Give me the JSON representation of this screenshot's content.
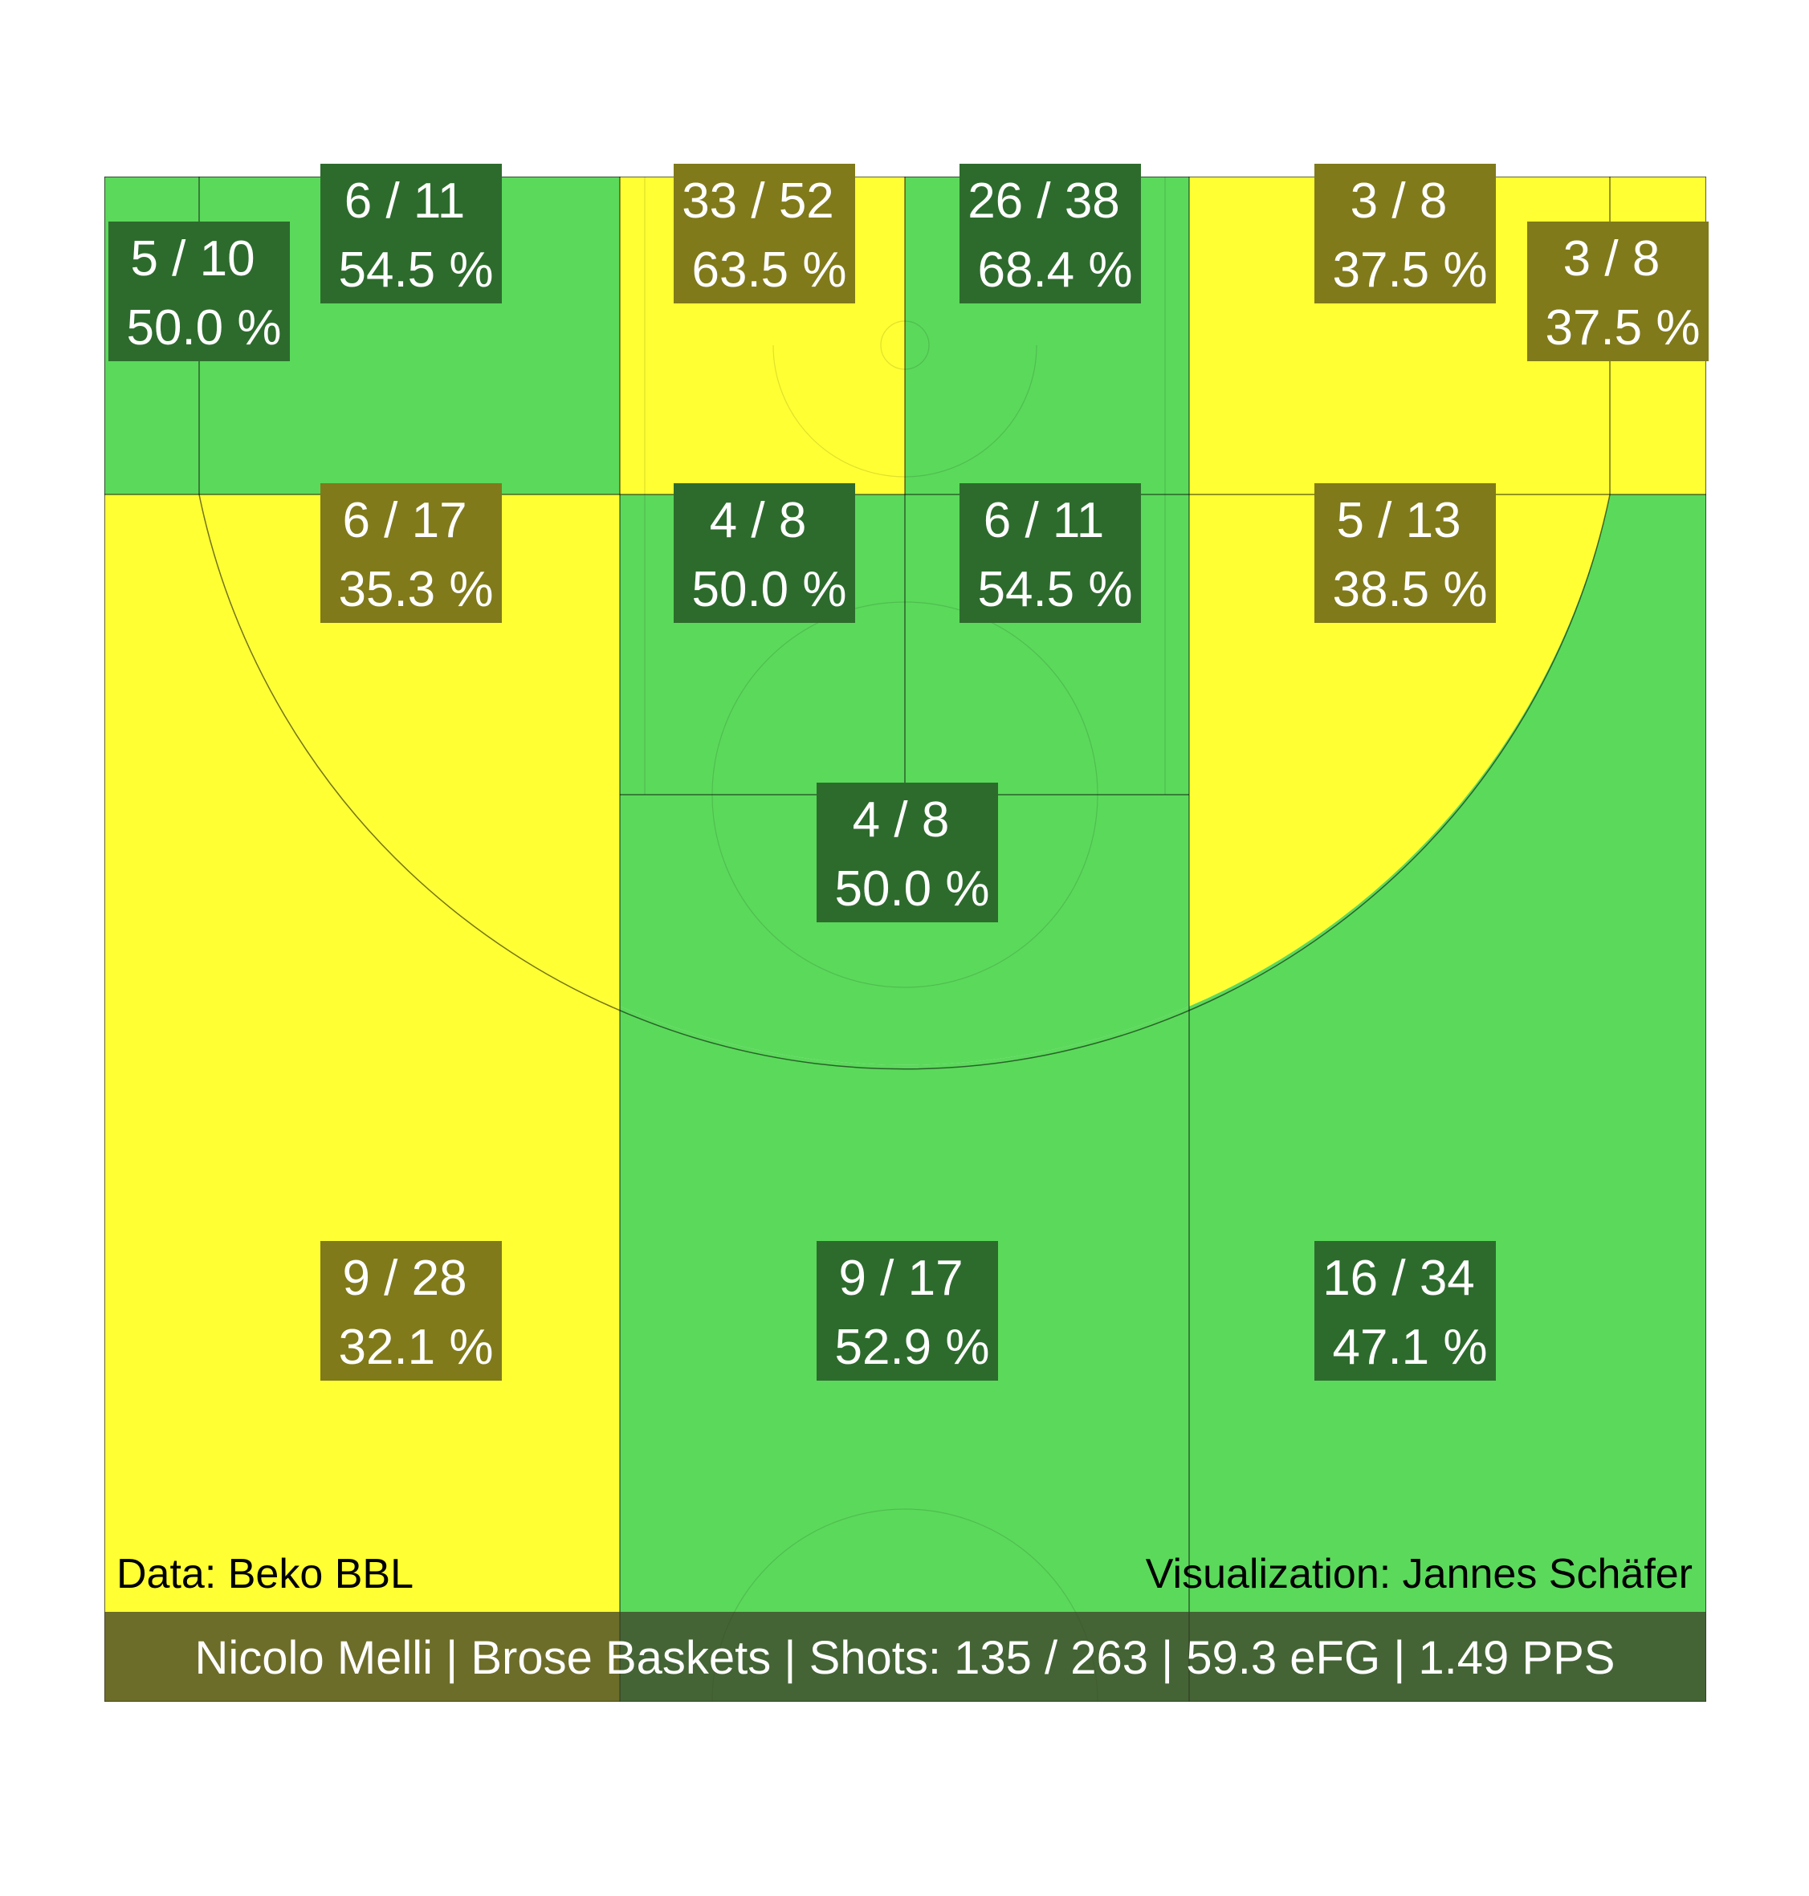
{
  "chart_data": {
    "type": "heatmap",
    "colors": {
      "above_average": "#5bd95b",
      "below_average": "#ffff33",
      "label_good": "#2d6b2d",
      "label_bad": "#807a1a",
      "court_line": "#000000",
      "banner": "#4a4a3a"
    },
    "zones": [
      {
        "zone": "left-corner-three",
        "made": 5,
        "attempts": 10,
        "made_attempts": "5 / 10",
        "pct": "50.0 %",
        "rating": "good"
      },
      {
        "zone": "left-baseline-mid",
        "made": 6,
        "attempts": 11,
        "made_attempts": "6 / 11",
        "pct": "54.5 %",
        "rating": "good"
      },
      {
        "zone": "restricted-left",
        "made": 33,
        "attempts": 52,
        "made_attempts": "33 / 52",
        "pct": "63.5 %",
        "rating": "bad"
      },
      {
        "zone": "restricted-right",
        "made": 26,
        "attempts": 38,
        "made_attempts": "26 / 38",
        "pct": "68.4 %",
        "rating": "good"
      },
      {
        "zone": "right-baseline-mid",
        "made": 3,
        "attempts": 8,
        "made_attempts": "3 / 8",
        "pct": "37.5 %",
        "rating": "bad"
      },
      {
        "zone": "right-corner-three",
        "made": 3,
        "attempts": 8,
        "made_attempts": "3 / 8",
        "pct": "37.5 %",
        "rating": "bad"
      },
      {
        "zone": "left-wing-mid",
        "made": 6,
        "attempts": 17,
        "made_attempts": "6 / 17",
        "pct": "35.3 %",
        "rating": "bad"
      },
      {
        "zone": "paint-left",
        "made": 4,
        "attempts": 8,
        "made_attempts": "4 / 8",
        "pct": "50.0 %",
        "rating": "good"
      },
      {
        "zone": "paint-right",
        "made": 6,
        "attempts": 11,
        "made_attempts": "6 / 11",
        "pct": "54.5 %",
        "rating": "good"
      },
      {
        "zone": "right-wing-mid",
        "made": 5,
        "attempts": 13,
        "made_attempts": "5 / 13",
        "pct": "38.5 %",
        "rating": "bad"
      },
      {
        "zone": "top-key-mid",
        "made": 4,
        "attempts": 8,
        "made_attempts": "4 / 8",
        "pct": "50.0 %",
        "rating": "good"
      },
      {
        "zone": "left-wing-three",
        "made": 9,
        "attempts": 28,
        "made_attempts": "9 / 28",
        "pct": "32.1 %",
        "rating": "bad"
      },
      {
        "zone": "top-three",
        "made": 9,
        "attempts": 17,
        "made_attempts": "9 / 17",
        "pct": "52.9 %",
        "rating": "good"
      },
      {
        "zone": "right-wing-three",
        "made": 16,
        "attempts": 34,
        "made_attempts": "16 / 34",
        "pct": "47.1 %",
        "rating": "good"
      }
    ]
  },
  "credits": {
    "data_source": "Data: Beko BBL",
    "visualization": "Visualization: Jannes Schäfer"
  },
  "summary": "Nicolo Melli | Brose Baskets | Shots: 135 / 263 | 59.3 eFG | 1.49 PPS"
}
